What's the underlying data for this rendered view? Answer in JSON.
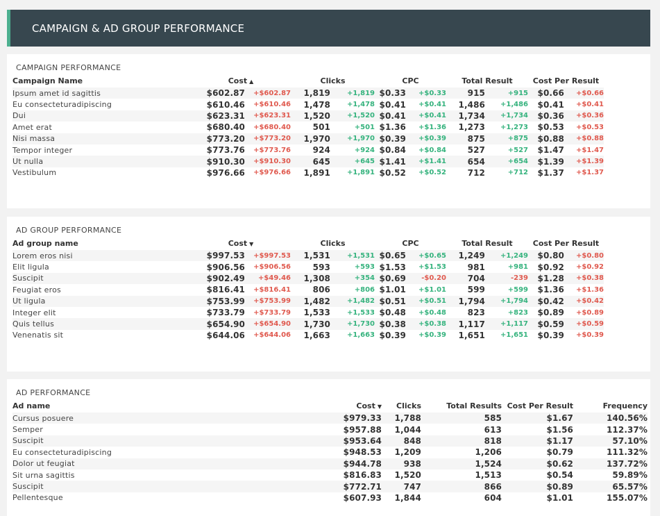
{
  "header": {
    "title": "CAMPAIGN & AD GROUP PERFORMANCE"
  },
  "campaign": {
    "title": "CAMPAIGN PERFORMANCE",
    "columns": {
      "name": "Campaign Name",
      "cost": "Cost",
      "clicks": "Clicks",
      "cpc": "CPC",
      "result": "Total Result",
      "cpr": "Cost Per Result"
    },
    "sort_icon": "chevron-up-icon",
    "rows": [
      {
        "name": "Ipsum amet id sagittis",
        "cost": "$602.87",
        "cost_d": "+$602.87",
        "clicks": "1,819",
        "clicks_d": "+1,819",
        "cpc": "$0.33",
        "cpc_d": "+$0.33",
        "result": "915",
        "result_d": "+915",
        "cpr": "$0.66",
        "cpr_d": "+$0.66"
      },
      {
        "name": "Eu consecteturadipiscing",
        "cost": "$610.46",
        "cost_d": "+$610.46",
        "clicks": "1,478",
        "clicks_d": "+1,478",
        "cpc": "$0.41",
        "cpc_d": "+$0.41",
        "result": "1,486",
        "result_d": "+1,486",
        "cpr": "$0.41",
        "cpr_d": "+$0.41"
      },
      {
        "name": "Dui",
        "cost": "$623.31",
        "cost_d": "+$623.31",
        "clicks": "1,520",
        "clicks_d": "+1,520",
        "cpc": "$0.41",
        "cpc_d": "+$0.41",
        "result": "1,734",
        "result_d": "+1,734",
        "cpr": "$0.36",
        "cpr_d": "+$0.36"
      },
      {
        "name": "Amet erat",
        "cost": "$680.40",
        "cost_d": "+$680.40",
        "clicks": "501",
        "clicks_d": "+501",
        "cpc": "$1.36",
        "cpc_d": "+$1.36",
        "result": "1,273",
        "result_d": "+1,273",
        "cpr": "$0.53",
        "cpr_d": "+$0.53"
      },
      {
        "name": "Nisi massa",
        "cost": "$773.20",
        "cost_d": "+$773.20",
        "clicks": "1,970",
        "clicks_d": "+1,970",
        "cpc": "$0.39",
        "cpc_d": "+$0.39",
        "result": "875",
        "result_d": "+875",
        "cpr": "$0.88",
        "cpr_d": "+$0.88"
      },
      {
        "name": "Tempor integer",
        "cost": "$773.76",
        "cost_d": "+$773.76",
        "clicks": "924",
        "clicks_d": "+924",
        "cpc": "$0.84",
        "cpc_d": "+$0.84",
        "result": "527",
        "result_d": "+527",
        "cpr": "$1.47",
        "cpr_d": "+$1.47"
      },
      {
        "name": "Ut nulla",
        "cost": "$910.30",
        "cost_d": "+$910.30",
        "clicks": "645",
        "clicks_d": "+645",
        "cpc": "$1.41",
        "cpc_d": "+$1.41",
        "result": "654",
        "result_d": "+654",
        "cpr": "$1.39",
        "cpr_d": "+$1.39"
      },
      {
        "name": "Vestibulum",
        "cost": "$976.66",
        "cost_d": "+$976.66",
        "clicks": "1,891",
        "clicks_d": "+1,891",
        "cpc": "$0.52",
        "cpc_d": "+$0.52",
        "result": "712",
        "result_d": "+712",
        "cpr": "$1.37",
        "cpr_d": "+$1.37"
      }
    ]
  },
  "adgroup": {
    "title": "AD GROUP PERFORMANCE",
    "columns": {
      "name": "Ad group name",
      "cost": "Cost",
      "clicks": "Clicks",
      "cpc": "CPC",
      "result": "Total Result",
      "cpr": "Cost Per Result"
    },
    "sort_icon": "chevron-down-icon",
    "rows": [
      {
        "name": "Lorem eros nisi",
        "cost": "$997.53",
        "cost_d": "+$997.53",
        "clicks": "1,531",
        "clicks_d": "+1,531",
        "cpc": "$0.65",
        "cpc_d": "+$0.65",
        "result": "1,249",
        "result_d": "+1,249",
        "cpr": "$0.80",
        "cpr_d": "+$0.80"
      },
      {
        "name": "Elit ligula",
        "cost": "$906.56",
        "cost_d": "+$906.56",
        "clicks": "593",
        "clicks_d": "+593",
        "cpc": "$1.53",
        "cpc_d": "+$1.53",
        "result": "981",
        "result_d": "+981",
        "cpr": "$0.92",
        "cpr_d": "+$0.92"
      },
      {
        "name": "Suscipit",
        "cost": "$902.49",
        "cost_d": "+$49.46",
        "clicks": "1,308",
        "clicks_d": "+354",
        "cpc": "$0.69",
        "cpc_d": "-$0.20",
        "result": "704",
        "result_d": "-239",
        "cpr": "$1.28",
        "cpr_d": "+$0.38"
      },
      {
        "name": "Feugiat eros",
        "cost": "$816.41",
        "cost_d": "+$816.41",
        "clicks": "806",
        "clicks_d": "+806",
        "cpc": "$1.01",
        "cpc_d": "+$1.01",
        "result": "599",
        "result_d": "+599",
        "cpr": "$1.36",
        "cpr_d": "+$1.36"
      },
      {
        "name": "Ut ligula",
        "cost": "$753.99",
        "cost_d": "+$753.99",
        "clicks": "1,482",
        "clicks_d": "+1,482",
        "cpc": "$0.51",
        "cpc_d": "+$0.51",
        "result": "1,794",
        "result_d": "+1,794",
        "cpr": "$0.42",
        "cpr_d": "+$0.42"
      },
      {
        "name": "Integer elit",
        "cost": "$733.79",
        "cost_d": "+$733.79",
        "clicks": "1,533",
        "clicks_d": "+1,533",
        "cpc": "$0.48",
        "cpc_d": "+$0.48",
        "result": "823",
        "result_d": "+823",
        "cpr": "$0.89",
        "cpr_d": "+$0.89"
      },
      {
        "name": "Quis tellus",
        "cost": "$654.90",
        "cost_d": "+$654.90",
        "clicks": "1,730",
        "clicks_d": "+1,730",
        "cpc": "$0.38",
        "cpc_d": "+$0.38",
        "result": "1,117",
        "result_d": "+1,117",
        "cpr": "$0.59",
        "cpr_d": "+$0.59"
      },
      {
        "name": "Venenatis sit",
        "cost": "$644.06",
        "cost_d": "+$644.06",
        "clicks": "1,663",
        "clicks_d": "+1,663",
        "cpc": "$0.39",
        "cpc_d": "+$0.39",
        "result": "1,651",
        "result_d": "+1,651",
        "cpr": "$0.39",
        "cpr_d": "+$0.39"
      }
    ]
  },
  "ad": {
    "title": "AD PERFORMANCE",
    "columns": {
      "name": "Ad name",
      "cost": "Cost",
      "clicks": "Clicks",
      "results": "Total Results",
      "cpr": "Cost Per Result",
      "frequency": "Frequency"
    },
    "sort_icon": "chevron-down-icon",
    "rows": [
      {
        "name": "Cursus posuere",
        "cost": "$979.33",
        "clicks": "1,788",
        "results": "585",
        "cpr": "$1.67",
        "frequency": "140.56%"
      },
      {
        "name": "Semper",
        "cost": "$957.88",
        "clicks": "1,044",
        "results": "613",
        "cpr": "$1.56",
        "frequency": "112.37%"
      },
      {
        "name": "Suscipit",
        "cost": "$953.64",
        "clicks": "848",
        "results": "818",
        "cpr": "$1.17",
        "frequency": "57.10%"
      },
      {
        "name": "Eu consecteturadipiscing",
        "cost": "$948.53",
        "clicks": "1,209",
        "results": "1,206",
        "cpr": "$0.79",
        "frequency": "111.32%"
      },
      {
        "name": "Dolor ut feugiat",
        "cost": "$944.78",
        "clicks": "938",
        "results": "1,524",
        "cpr": "$0.62",
        "frequency": "137.72%"
      },
      {
        "name": "Sit urna sagittis",
        "cost": "$816.83",
        "clicks": "1,520",
        "results": "1,513",
        "cpr": "$0.54",
        "frequency": "59.89%"
      },
      {
        "name": "Suscipit",
        "cost": "$772.71",
        "clicks": "747",
        "results": "866",
        "cpr": "$0.89",
        "frequency": "65.57%"
      },
      {
        "name": "Pellentesque",
        "cost": "$607.93",
        "clicks": "1,844",
        "results": "604",
        "cpr": "$1.01",
        "frequency": "155.07%"
      }
    ]
  },
  "colors": {
    "header_bg": "#37474f",
    "accent": "#4caf8f",
    "positive": "#36b37e",
    "negative": "#e05a4f"
  }
}
